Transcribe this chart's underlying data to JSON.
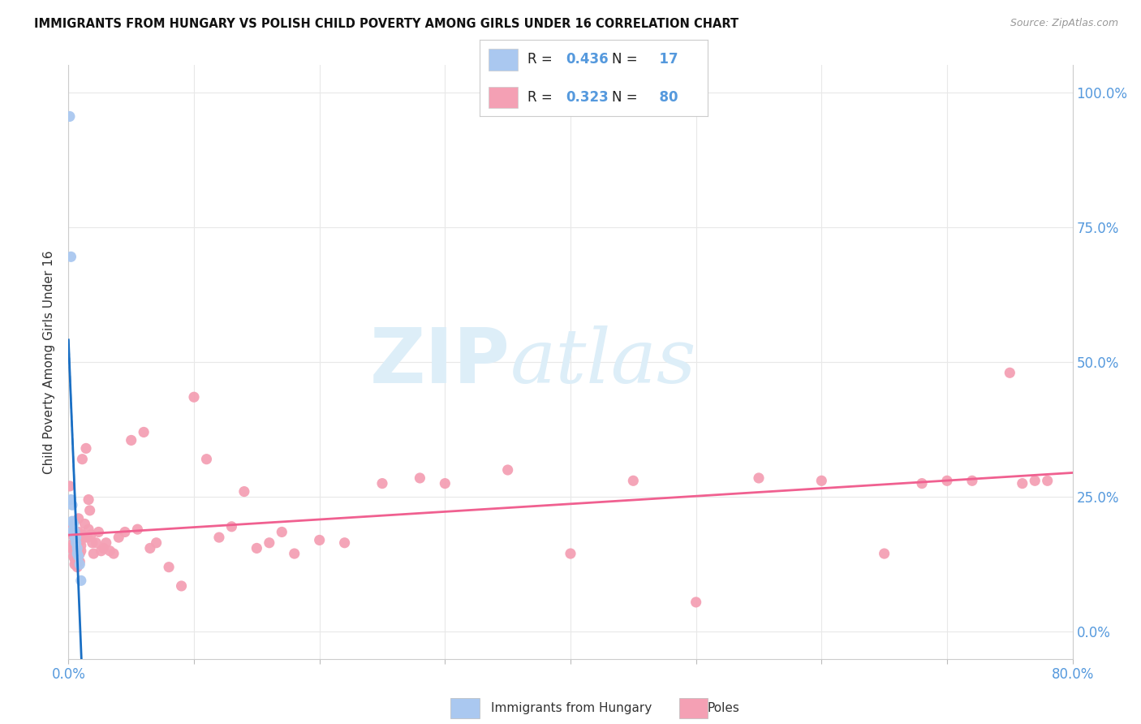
{
  "title": "IMMIGRANTS FROM HUNGARY VS POLISH CHILD POVERTY AMONG GIRLS UNDER 16 CORRELATION CHART",
  "source": "Source: ZipAtlas.com",
  "ylabel": "Child Poverty Among Girls Under 16",
  "xlim": [
    0.0,
    0.8
  ],
  "ylim": [
    -0.05,
    1.05
  ],
  "x_ticks": [
    0.0,
    0.1,
    0.2,
    0.3,
    0.4,
    0.5,
    0.6,
    0.7,
    0.8
  ],
  "x_tick_labels": [
    "0.0%",
    "",
    "",
    "",
    "",
    "",
    "",
    "",
    "80.0%"
  ],
  "y_ticks": [
    0.0,
    0.25,
    0.5,
    0.75,
    1.0
  ],
  "y_tick_labels_right": [
    "0.0%",
    "25.0%",
    "50.0%",
    "75.0%",
    "100.0%"
  ],
  "hungary_R": 0.436,
  "hungary_N": 17,
  "poles_R": 0.323,
  "poles_N": 80,
  "hungary_color": "#aac8f0",
  "hungary_line_color": "#1a6fc4",
  "poles_color": "#f4a0b4",
  "poles_line_color": "#f06090",
  "hungary_scatter_x": [
    0.001,
    0.002,
    0.002,
    0.003,
    0.003,
    0.004,
    0.004,
    0.004,
    0.005,
    0.005,
    0.006,
    0.006,
    0.007,
    0.007,
    0.008,
    0.009,
    0.01
  ],
  "hungary_scatter_y": [
    0.955,
    0.695,
    0.245,
    0.235,
    0.205,
    0.2,
    0.19,
    0.185,
    0.185,
    0.175,
    0.175,
    0.165,
    0.155,
    0.145,
    0.14,
    0.125,
    0.095
  ],
  "poles_scatter_x": [
    0.001,
    0.002,
    0.002,
    0.003,
    0.003,
    0.004,
    0.004,
    0.005,
    0.005,
    0.005,
    0.006,
    0.006,
    0.006,
    0.007,
    0.007,
    0.007,
    0.008,
    0.008,
    0.008,
    0.009,
    0.009,
    0.01,
    0.01,
    0.01,
    0.011,
    0.011,
    0.012,
    0.013,
    0.014,
    0.015,
    0.016,
    0.016,
    0.017,
    0.018,
    0.019,
    0.02,
    0.022,
    0.024,
    0.026,
    0.028,
    0.03,
    0.033,
    0.036,
    0.04,
    0.045,
    0.05,
    0.055,
    0.06,
    0.065,
    0.07,
    0.08,
    0.09,
    0.1,
    0.11,
    0.12,
    0.13,
    0.14,
    0.15,
    0.16,
    0.17,
    0.18,
    0.2,
    0.22,
    0.25,
    0.28,
    0.3,
    0.35,
    0.4,
    0.45,
    0.5,
    0.55,
    0.6,
    0.65,
    0.68,
    0.7,
    0.72,
    0.75,
    0.76,
    0.77,
    0.78
  ],
  "poles_scatter_y": [
    0.27,
    0.195,
    0.155,
    0.18,
    0.155,
    0.165,
    0.14,
    0.145,
    0.135,
    0.125,
    0.165,
    0.14,
    0.13,
    0.145,
    0.13,
    0.12,
    0.21,
    0.185,
    0.175,
    0.145,
    0.13,
    0.17,
    0.16,
    0.15,
    0.32,
    0.18,
    0.175,
    0.2,
    0.34,
    0.175,
    0.245,
    0.19,
    0.225,
    0.18,
    0.165,
    0.145,
    0.165,
    0.185,
    0.15,
    0.155,
    0.165,
    0.15,
    0.145,
    0.175,
    0.185,
    0.355,
    0.19,
    0.37,
    0.155,
    0.165,
    0.12,
    0.085,
    0.435,
    0.32,
    0.175,
    0.195,
    0.26,
    0.155,
    0.165,
    0.185,
    0.145,
    0.17,
    0.165,
    0.275,
    0.285,
    0.275,
    0.3,
    0.145,
    0.28,
    0.055,
    0.285,
    0.28,
    0.145,
    0.275,
    0.28,
    0.28,
    0.48,
    0.275,
    0.28,
    0.28
  ],
  "watermark_zip": "ZIP",
  "watermark_atlas": "atlas",
  "watermark_color": "#ddeef8",
  "background_color": "#ffffff",
  "grid_color": "#e8e8e8",
  "label_color": "#5599dd",
  "text_color": "#333333"
}
